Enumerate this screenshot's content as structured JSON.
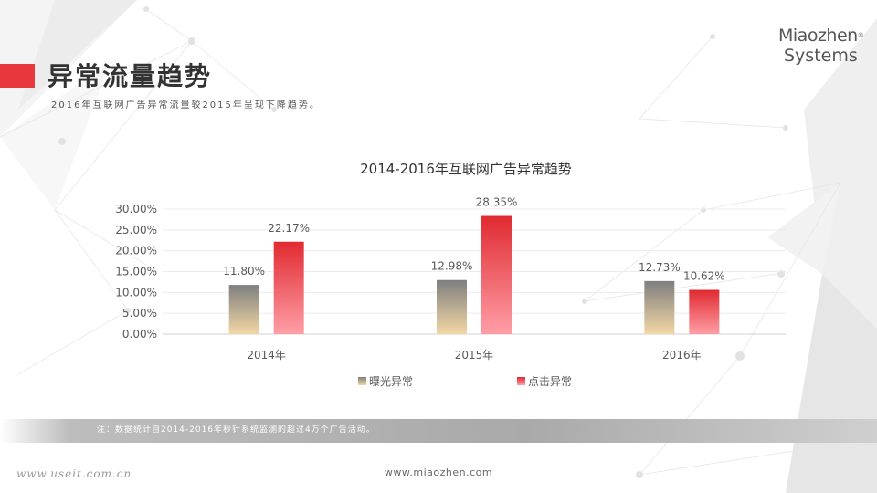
{
  "slide": {
    "title": "异常流量趋势",
    "subtitle": "2016年互联网广告异常流量较2015年呈现下降趋势。",
    "accent_color": "#e8383d"
  },
  "logo": {
    "line1": "Miaozhen",
    "line2": "Systems",
    "reg": "®"
  },
  "footer": {
    "note": "注：数据统计自2014-2016年秒针系统监测的超过4万个广告活动。",
    "url": "www.miaozhen.com",
    "watermark": "www.useit.com.cn"
  },
  "chart_data": {
    "type": "bar",
    "title": "2014-2016年互联网广告异常趋势",
    "categories": [
      "2014年",
      "2015年",
      "2016年"
    ],
    "series": [
      {
        "name": "曝光异常",
        "values": [
          11.8,
          12.98,
          12.73
        ],
        "labels": [
          "11.80%",
          "12.98%",
          "12.73%"
        ],
        "color_top": "#7f7f7f",
        "color_bottom": "#f3d7a5"
      },
      {
        "name": "点击异常",
        "values": [
          22.17,
          28.35,
          10.62
        ],
        "labels": [
          "22.17%",
          "28.35%",
          "10.62%"
        ],
        "color_top": "#e02a30",
        "color_bottom": "#ff9ea6"
      }
    ],
    "y_ticks": [
      "0.00%",
      "5.00%",
      "10.00%",
      "15.00%",
      "20.00%",
      "25.00%",
      "30.00%"
    ],
    "ylim": [
      0,
      30
    ],
    "grid": true,
    "legend": "bottom"
  }
}
